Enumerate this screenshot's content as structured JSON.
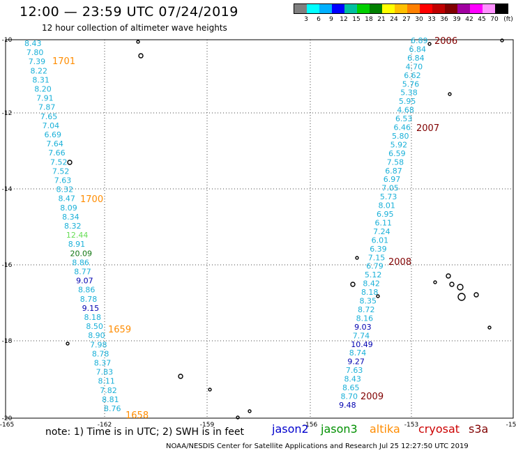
{
  "header": {
    "title": "12:00 — 23:59 UTC 07/24/2019",
    "subtitle": "12 hour collection of altimeter wave heights"
  },
  "color_scale": {
    "colors": [
      "#808080",
      "#00ffff",
      "#00b0ff",
      "#0000ff",
      "#00c0a0",
      "#00d000",
      "#008000",
      "#ffff00",
      "#ffc000",
      "#ff8000",
      "#ff0000",
      "#c00000",
      "#800000",
      "#a000a0",
      "#ff00ff",
      "#ff90ff",
      "#000000"
    ],
    "labels": [
      "3",
      "6",
      "9",
      "12",
      "15",
      "18",
      "21",
      "24",
      "27",
      "30",
      "33",
      "36",
      "39",
      "42",
      "45",
      "70",
      "(ft)"
    ]
  },
  "map": {
    "lon_labels": [
      "-165",
      "-162",
      "-159",
      "-156",
      "-153",
      "-15"
    ],
    "lat_labels": [
      "-10",
      "-12",
      "-14",
      "-16",
      "-18",
      "-20"
    ],
    "colors": {
      "jason2": "#0000cd",
      "jason3": "#009000",
      "altika": "#ff8c00",
      "cryosat": "#cc0000",
      "s3a": "#800000"
    },
    "time_labels": [
      {
        "text": "1701",
        "sat": "altika"
      },
      {
        "text": "1700",
        "sat": "altika"
      },
      {
        "text": "1659",
        "sat": "altika"
      },
      {
        "text": "1658",
        "sat": "altika"
      },
      {
        "text": "2006",
        "sat": "s3a"
      },
      {
        "text": "2007",
        "sat": "s3a"
      },
      {
        "text": "2008",
        "sat": "s3a"
      },
      {
        "text": "2009",
        "sat": "s3a"
      }
    ],
    "track_left": [
      {
        "v": "8.43",
        "c": "#1ab0d8"
      },
      {
        "v": "7.80",
        "c": "#1ab0d8"
      },
      {
        "v": "7.39",
        "c": "#1ab0d8"
      },
      {
        "v": "8.22",
        "c": "#1ab0d8"
      },
      {
        "v": "8.31",
        "c": "#1ab0d8"
      },
      {
        "v": "8.20",
        "c": "#1ab0d8"
      },
      {
        "v": "7.91",
        "c": "#1ab0d8"
      },
      {
        "v": "7.87",
        "c": "#1ab0d8"
      },
      {
        "v": "7.65",
        "c": "#1ab0d8"
      },
      {
        "v": "7.04",
        "c": "#1ab0d8"
      },
      {
        "v": "6.69",
        "c": "#1ab0d8"
      },
      {
        "v": "7.64",
        "c": "#1ab0d8"
      },
      {
        "v": "7.66",
        "c": "#1ab0d8"
      },
      {
        "v": "7.52",
        "c": "#1ab0d8"
      },
      {
        "v": "7.52",
        "c": "#1ab0d8"
      },
      {
        "v": "7.63",
        "c": "#1ab0d8"
      },
      {
        "v": "8.32",
        "c": "#1ab0d8"
      },
      {
        "v": "8.47",
        "c": "#1ab0d8"
      },
      {
        "v": "8.09",
        "c": "#1ab0d8"
      },
      {
        "v": "8.34",
        "c": "#1ab0d8"
      },
      {
        "v": "8.32",
        "c": "#1ab0d8"
      },
      {
        "v": "12.44",
        "c": "#66dd55"
      },
      {
        "v": "8.91",
        "c": "#1ab0d8"
      },
      {
        "v": "20.09",
        "c": "#117711"
      },
      {
        "v": "8.86",
        "c": "#1ab0d8"
      },
      {
        "v": "8.77",
        "c": "#1ab0d8"
      },
      {
        "v": "9.07",
        "c": "#0000b0"
      },
      {
        "v": "8.86",
        "c": "#1ab0d8"
      },
      {
        "v": "8.78",
        "c": "#1ab0d8"
      },
      {
        "v": "9.15",
        "c": "#0000b0"
      },
      {
        "v": "8.18",
        "c": "#1ab0d8"
      },
      {
        "v": "8.50",
        "c": "#1ab0d8"
      },
      {
        "v": "8.90",
        "c": "#1ab0d8"
      },
      {
        "v": "7.98",
        "c": "#1ab0d8"
      },
      {
        "v": "8.78",
        "c": "#1ab0d8"
      },
      {
        "v": "8.37",
        "c": "#1ab0d8"
      },
      {
        "v": "7.83",
        "c": "#1ab0d8"
      },
      {
        "v": "8.11",
        "c": "#1ab0d8"
      },
      {
        "v": "7.82",
        "c": "#1ab0d8"
      },
      {
        "v": "8.81",
        "c": "#1ab0d8"
      },
      {
        "v": "8.76",
        "c": "#1ab0d8"
      }
    ],
    "track_right": [
      {
        "v": "6.89",
        "c": "#1ab0d8"
      },
      {
        "v": "6.84",
        "c": "#1ab0d8"
      },
      {
        "v": "6.84",
        "c": "#1ab0d8"
      },
      {
        "v": "4.70",
        "c": "#1ab0d8"
      },
      {
        "v": "6.62",
        "c": "#1ab0d8"
      },
      {
        "v": "5.76",
        "c": "#1ab0d8"
      },
      {
        "v": "5.38",
        "c": "#1ab0d8"
      },
      {
        "v": "5.95",
        "c": "#1ab0d8"
      },
      {
        "v": "4.68",
        "c": "#1ab0d8"
      },
      {
        "v": "6.53",
        "c": "#1ab0d8"
      },
      {
        "v": "6.46",
        "c": "#1ab0d8"
      },
      {
        "v": "5.80",
        "c": "#1ab0d8"
      },
      {
        "v": "5.92",
        "c": "#1ab0d8"
      },
      {
        "v": "6.59",
        "c": "#1ab0d8"
      },
      {
        "v": "7.58",
        "c": "#1ab0d8"
      },
      {
        "v": "6.87",
        "c": "#1ab0d8"
      },
      {
        "v": "6.97",
        "c": "#1ab0d8"
      },
      {
        "v": "7.05",
        "c": "#1ab0d8"
      },
      {
        "v": "5.73",
        "c": "#1ab0d8"
      },
      {
        "v": "8.01",
        "c": "#1ab0d8"
      },
      {
        "v": "6.95",
        "c": "#1ab0d8"
      },
      {
        "v": "6.11",
        "c": "#1ab0d8"
      },
      {
        "v": "7.24",
        "c": "#1ab0d8"
      },
      {
        "v": "6.01",
        "c": "#1ab0d8"
      },
      {
        "v": "6.39",
        "c": "#1ab0d8"
      },
      {
        "v": "7.15",
        "c": "#1ab0d8"
      },
      {
        "v": "6.79",
        "c": "#1ab0d8"
      },
      {
        "v": "5.12",
        "c": "#1ab0d8"
      },
      {
        "v": "8.42",
        "c": "#1ab0d8"
      },
      {
        "v": "8.18",
        "c": "#1ab0d8"
      },
      {
        "v": "8.35",
        "c": "#1ab0d8"
      },
      {
        "v": "8.72",
        "c": "#1ab0d8"
      },
      {
        "v": "8.16",
        "c": "#1ab0d8"
      },
      {
        "v": "9.03",
        "c": "#0000b0"
      },
      {
        "v": "7.74",
        "c": "#1ab0d8"
      },
      {
        "v": "10.49",
        "c": "#0000b0"
      },
      {
        "v": "8.74",
        "c": "#1ab0d8"
      },
      {
        "v": "9.27",
        "c": "#0000b0"
      },
      {
        "v": "7.63",
        "c": "#1ab0d8"
      },
      {
        "v": "8.43",
        "c": "#1ab0d8"
      },
      {
        "v": "8.65",
        "c": "#1ab0d8"
      },
      {
        "v": "8.70",
        "c": "#1ab0d8"
      },
      {
        "v": "9.48",
        "c": "#0000b0"
      }
    ]
  },
  "footer": {
    "note": "note:  1) Time is in UTC;  2) SWH is in feet",
    "legend": {
      "jason2": "jason2",
      "jason3": "jason3",
      "altika": "altika",
      "cryosat": "cryosat",
      "s3a": "s3a"
    },
    "credit": "NOAA/NESDIS Center for Satellite Applications and Research     Jul 25 12:27:50 UTC 2019"
  }
}
